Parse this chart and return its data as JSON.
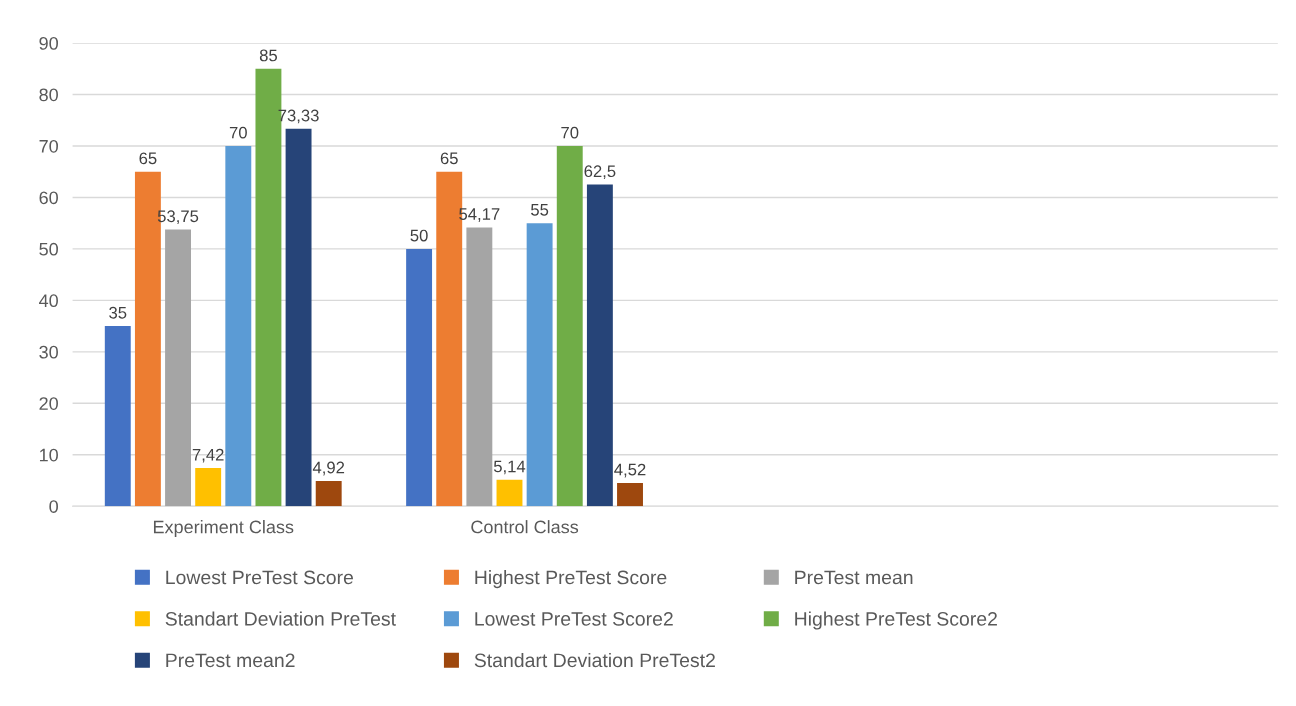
{
  "chart_data": {
    "type": "bar",
    "categories": [
      "Experiment Class",
      "Control Class",
      null,
      null
    ],
    "series": [
      {
        "name": "Lowest PreTest Score",
        "color": "#4472c4",
        "values": [
          35,
          50,
          null,
          null
        ],
        "value_labels": [
          "35",
          "50",
          null,
          null
        ]
      },
      {
        "name": "Highest PreTest Score",
        "color": "#ed7d31",
        "values": [
          65,
          65,
          null,
          null
        ],
        "value_labels": [
          "65",
          "65",
          null,
          null
        ]
      },
      {
        "name": "PreTest mean",
        "color": "#a5a5a5",
        "values": [
          53.75,
          54.17,
          null,
          null
        ],
        "value_labels": [
          "53,75",
          "54,17",
          null,
          null
        ]
      },
      {
        "name": "Standart Deviation PreTest",
        "color": "#ffc000",
        "values": [
          7.42,
          5.14,
          null,
          null
        ],
        "value_labels": [
          "7,42",
          "5,14",
          null,
          null
        ]
      },
      {
        "name": "Lowest PreTest Score2",
        "color": "#5b9bd5",
        "values": [
          70,
          55,
          null,
          null
        ],
        "value_labels": [
          "70",
          "55",
          null,
          null
        ]
      },
      {
        "name": "Highest PreTest Score2",
        "color": "#70ad47",
        "values": [
          85,
          70,
          null,
          null
        ],
        "value_labels": [
          "85",
          "70",
          null,
          null
        ]
      },
      {
        "name": "PreTest mean2",
        "color": "#264478",
        "values": [
          73.33,
          62.5,
          null,
          null
        ],
        "value_labels": [
          "73,33",
          "62,5",
          null,
          null
        ]
      },
      {
        "name": "Standart Deviation PreTest2",
        "color": "#9e480e",
        "values": [
          4.92,
          4.52,
          null,
          null
        ],
        "value_labels": [
          "4,92",
          "4,52",
          null,
          null
        ]
      }
    ],
    "ylim": [
      0,
      90
    ],
    "yticks": [
      0,
      10,
      20,
      30,
      40,
      50,
      60,
      70,
      80,
      90
    ],
    "grid": "y",
    "legend": "bottom"
  }
}
